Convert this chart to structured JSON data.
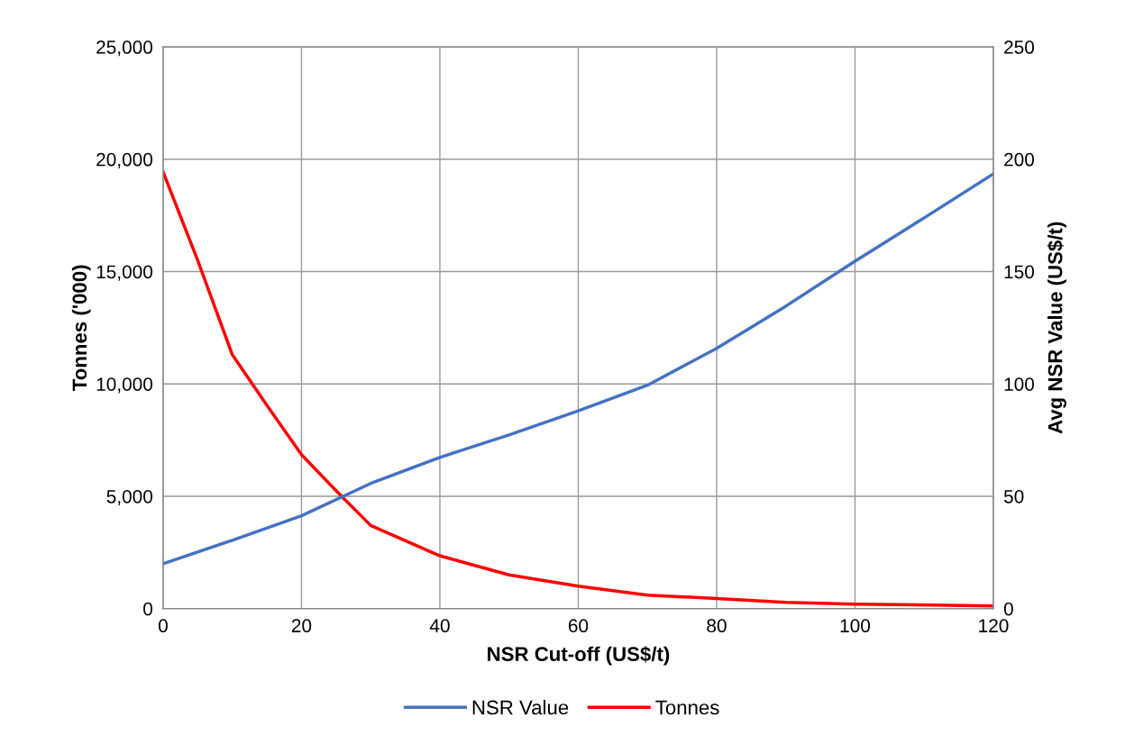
{
  "chart_data": {
    "type": "line",
    "xlabel": "NSR Cut-off (US$/t)",
    "ylabel": "Tonnes ('000)",
    "y2label": "Avg NSR Value (US$/t)",
    "xlim": [
      0,
      120
    ],
    "xticks": [
      0,
      20,
      40,
      60,
      80,
      100,
      120
    ],
    "ylim": [
      0,
      25000
    ],
    "yticks": [
      {
        "value": 0,
        "label": "0"
      },
      {
        "value": 5000,
        "label": "5,000"
      },
      {
        "value": 10000,
        "label": "10,000"
      },
      {
        "value": 15000,
        "label": "15,000"
      },
      {
        "value": 20000,
        "label": "20,000"
      },
      {
        "value": 25000,
        "label": "25,000"
      }
    ],
    "y2lim": [
      0,
      250
    ],
    "y2ticks": [
      0,
      50,
      100,
      150,
      200,
      250
    ],
    "grid": true,
    "legend": "bottom",
    "marker": "none",
    "line_style": "solid",
    "series": [
      {
        "name": "NSR Value",
        "color": "#4472c4",
        "axis": "y2",
        "x": [
          0,
          10,
          20,
          30,
          40,
          50,
          60,
          70,
          80,
          90,
          100,
          110,
          120
        ],
        "values": [
          20,
          30.4,
          41.3,
          55.7,
          67.3,
          77.3,
          88,
          99.4,
          115.8,
          134.6,
          154.6,
          173.9,
          193.5
        ]
      },
      {
        "name": "Tonnes",
        "color": "#ff0000",
        "axis": "y",
        "x": [
          0,
          5,
          10,
          15,
          20,
          25,
          30,
          40,
          50,
          60,
          70,
          80,
          90,
          100,
          120
        ],
        "values": [
          19430,
          15500,
          11300,
          9050,
          6850,
          5250,
          3700,
          2350,
          1500,
          1000,
          600,
          450,
          280,
          200,
          120
        ]
      }
    ]
  }
}
